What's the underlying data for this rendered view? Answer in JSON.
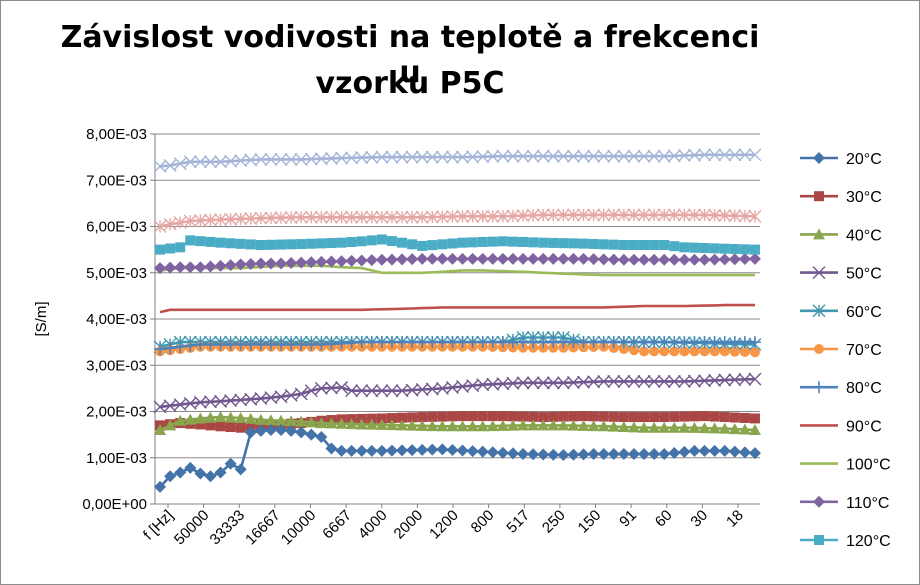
{
  "chart_data": {
    "type": "line",
    "title_line1": "Závislost vodivosti na teplotě a frekcenci u",
    "title_line2": "vzorku P5C",
    "xlabel": "",
    "ylabel": "[S/m]",
    "ylim": [
      0,
      0.008
    ],
    "y_ticks": [
      "0,00E+00",
      "1,00E-03",
      "2,00E-03",
      "3,00E-03",
      "4,00E-03",
      "5,00E-03",
      "6,00E-03",
      "7,00E-03",
      "8,00E-03"
    ],
    "x_tick_labels": [
      "f [Hz]",
      "50000",
      "33333",
      "16667",
      "10000",
      "6667",
      "4000",
      "2000",
      "1200",
      "800",
      "517",
      "250",
      "150",
      "91",
      "60",
      "30",
      "18"
    ],
    "grid": true,
    "legend_position": "right",
    "n_points": 60,
    "series": [
      {
        "name": "20°C",
        "color": "#4473a9",
        "marker": "diamond",
        "points": [
          [
            0,
            0.00037
          ],
          [
            1,
            0.0006
          ],
          [
            2,
            0.00068
          ],
          [
            3,
            0.00078
          ],
          [
            4,
            0.00066
          ],
          [
            5,
            0.0006
          ],
          [
            6,
            0.00068
          ],
          [
            7,
            0.00087
          ],
          [
            8,
            0.00075
          ],
          [
            9,
            0.00155
          ],
          [
            10,
            0.00158
          ],
          [
            11,
            0.0016
          ],
          [
            12,
            0.0016
          ],
          [
            13,
            0.00158
          ],
          [
            14,
            0.00155
          ],
          [
            15,
            0.0015
          ],
          [
            16,
            0.00145
          ],
          [
            17,
            0.0012
          ],
          [
            18,
            0.00115
          ],
          [
            22,
            0.00115
          ],
          [
            28,
            0.00118
          ],
          [
            33,
            0.00112
          ],
          [
            36,
            0.00108
          ],
          [
            40,
            0.00106
          ],
          [
            43,
            0.00108
          ],
          [
            50,
            0.00108
          ],
          [
            53,
            0.00115
          ],
          [
            56,
            0.00115
          ],
          [
            59,
            0.0011
          ]
        ]
      },
      {
        "name": "30°C",
        "color": "#aa4643",
        "marker": "square",
        "points": [
          [
            0,
            0.0017
          ],
          [
            2,
            0.00175
          ],
          [
            4,
            0.00172
          ],
          [
            6,
            0.00168
          ],
          [
            8,
            0.00165
          ],
          [
            10,
            0.0017
          ],
          [
            12,
            0.00172
          ],
          [
            14,
            0.00175
          ],
          [
            16,
            0.0018
          ],
          [
            18,
            0.00183
          ],
          [
            22,
            0.00185
          ],
          [
            26,
            0.00188
          ],
          [
            30,
            0.0019
          ],
          [
            34,
            0.0019
          ],
          [
            38,
            0.00188
          ],
          [
            42,
            0.0019
          ],
          [
            46,
            0.00188
          ],
          [
            50,
            0.00188
          ],
          [
            54,
            0.0019
          ],
          [
            59,
            0.00185
          ]
        ]
      },
      {
        "name": "40°C",
        "color": "#89a54e",
        "marker": "triangle",
        "points": [
          [
            0,
            0.0016
          ],
          [
            2,
            0.0018
          ],
          [
            4,
            0.00185
          ],
          [
            6,
            0.00188
          ],
          [
            8,
            0.00186
          ],
          [
            10,
            0.00182
          ],
          [
            12,
            0.0018
          ],
          [
            14,
            0.00178
          ],
          [
            16,
            0.00175
          ],
          [
            20,
            0.00172
          ],
          [
            24,
            0.0017
          ],
          [
            28,
            0.00168
          ],
          [
            32,
            0.00168
          ],
          [
            36,
            0.0017
          ],
          [
            40,
            0.0017
          ],
          [
            44,
            0.00168
          ],
          [
            48,
            0.00165
          ],
          [
            52,
            0.00165
          ],
          [
            56,
            0.00163
          ],
          [
            59,
            0.0016
          ]
        ]
      },
      {
        "name": "50°C",
        "color": "#71588f",
        "marker": "x",
        "points": [
          [
            0,
            0.0021
          ],
          [
            2,
            0.00215
          ],
          [
            4,
            0.0022
          ],
          [
            6,
            0.00222
          ],
          [
            8,
            0.00225
          ],
          [
            10,
            0.00228
          ],
          [
            12,
            0.00232
          ],
          [
            14,
            0.00238
          ],
          [
            15,
            0.00245
          ],
          [
            16,
            0.0025
          ],
          [
            18,
            0.00252
          ],
          [
            19,
            0.00245
          ],
          [
            20,
            0.00245
          ],
          [
            24,
            0.00245
          ],
          [
            28,
            0.0025
          ],
          [
            32,
            0.00258
          ],
          [
            36,
            0.00262
          ],
          [
            40,
            0.00262
          ],
          [
            44,
            0.00265
          ],
          [
            48,
            0.00265
          ],
          [
            52,
            0.00265
          ],
          [
            56,
            0.00268
          ],
          [
            59,
            0.0027
          ]
        ]
      },
      {
        "name": "60°C",
        "color": "#4198af",
        "marker": "asterisk",
        "points": [
          [
            0,
            0.0034
          ],
          [
            2,
            0.0035
          ],
          [
            4,
            0.0035
          ],
          [
            6,
            0.0035
          ],
          [
            8,
            0.0035
          ],
          [
            10,
            0.0035
          ],
          [
            12,
            0.0035
          ],
          [
            14,
            0.0035
          ],
          [
            18,
            0.0035
          ],
          [
            22,
            0.0035
          ],
          [
            26,
            0.0035
          ],
          [
            30,
            0.0035
          ],
          [
            34,
            0.0035
          ],
          [
            36,
            0.0036
          ],
          [
            38,
            0.0036
          ],
          [
            40,
            0.0036
          ],
          [
            42,
            0.0035
          ],
          [
            46,
            0.0035
          ],
          [
            50,
            0.0035
          ],
          [
            54,
            0.00348
          ],
          [
            59,
            0.00345
          ]
        ]
      },
      {
        "name": "70°C",
        "color": "#f79646",
        "marker": "circle",
        "points": [
          [
            0,
            0.0033
          ],
          [
            2,
            0.00335
          ],
          [
            4,
            0.0034
          ],
          [
            6,
            0.0034
          ],
          [
            8,
            0.0034
          ],
          [
            10,
            0.0034
          ],
          [
            12,
            0.0034
          ],
          [
            16,
            0.0034
          ],
          [
            20,
            0.0034
          ],
          [
            24,
            0.0034
          ],
          [
            28,
            0.0034
          ],
          [
            32,
            0.0034
          ],
          [
            36,
            0.00338
          ],
          [
            40,
            0.00338
          ],
          [
            44,
            0.0034
          ],
          [
            48,
            0.0033
          ],
          [
            52,
            0.0033
          ],
          [
            56,
            0.0033
          ],
          [
            59,
            0.00328
          ]
        ]
      },
      {
        "name": "80°C",
        "color": "#4f81bd",
        "marker": "plus",
        "points": [
          [
            0,
            0.00335
          ],
          [
            2,
            0.0034
          ],
          [
            4,
            0.00345
          ],
          [
            8,
            0.00345
          ],
          [
            12,
            0.00345
          ],
          [
            16,
            0.00345
          ],
          [
            20,
            0.0035
          ],
          [
            24,
            0.0035
          ],
          [
            28,
            0.0035
          ],
          [
            32,
            0.0035
          ],
          [
            36,
            0.0035
          ],
          [
            40,
            0.0035
          ],
          [
            44,
            0.0035
          ],
          [
            48,
            0.0035
          ],
          [
            52,
            0.0035
          ],
          [
            56,
            0.0035
          ],
          [
            59,
            0.0035
          ]
        ]
      },
      {
        "name": "90°C",
        "color": "#c0504d",
        "marker": "dash",
        "points": [
          [
            0,
            0.00415
          ],
          [
            1,
            0.0042
          ],
          [
            4,
            0.0042
          ],
          [
            8,
            0.0042
          ],
          [
            12,
            0.0042
          ],
          [
            16,
            0.0042
          ],
          [
            20,
            0.0042
          ],
          [
            24,
            0.00422
          ],
          [
            28,
            0.00425
          ],
          [
            32,
            0.00425
          ],
          [
            36,
            0.00425
          ],
          [
            40,
            0.00425
          ],
          [
            44,
            0.00425
          ],
          [
            48,
            0.00428
          ],
          [
            52,
            0.00428
          ],
          [
            56,
            0.0043
          ],
          [
            59,
            0.0043
          ]
        ]
      },
      {
        "name": "100°C",
        "color": "#9bbb59",
        "marker": "dash",
        "points": [
          [
            0,
            0.00505
          ],
          [
            2,
            0.0051
          ],
          [
            4,
            0.0051
          ],
          [
            8,
            0.0051
          ],
          [
            12,
            0.00515
          ],
          [
            16,
            0.00515
          ],
          [
            18,
            0.00512
          ],
          [
            20,
            0.0051
          ],
          [
            22,
            0.005
          ],
          [
            26,
            0.005
          ],
          [
            28,
            0.00502
          ],
          [
            30,
            0.00505
          ],
          [
            32,
            0.00505
          ],
          [
            36,
            0.00502
          ],
          [
            38,
            0.005
          ],
          [
            40,
            0.00498
          ],
          [
            44,
            0.00495
          ],
          [
            48,
            0.00495
          ],
          [
            52,
            0.00495
          ],
          [
            56,
            0.00495
          ],
          [
            59,
            0.00495
          ]
        ]
      },
      {
        "name": "110°C",
        "color": "#8064a2",
        "marker": "diamond",
        "points": [
          [
            0,
            0.0051
          ],
          [
            2,
            0.00512
          ],
          [
            4,
            0.00512
          ],
          [
            6,
            0.00515
          ],
          [
            8,
            0.00518
          ],
          [
            10,
            0.0052
          ],
          [
            12,
            0.0052
          ],
          [
            14,
            0.00522
          ],
          [
            18,
            0.00525
          ],
          [
            22,
            0.00528
          ],
          [
            26,
            0.0053
          ],
          [
            30,
            0.0053
          ],
          [
            34,
            0.0053
          ],
          [
            38,
            0.0053
          ],
          [
            42,
            0.0053
          ],
          [
            46,
            0.00528
          ],
          [
            50,
            0.00528
          ],
          [
            54,
            0.00528
          ],
          [
            59,
            0.0053
          ]
        ]
      },
      {
        "name": "120°C",
        "color": "#4bacc6",
        "marker": "square",
        "points": [
          [
            0,
            0.0055
          ],
          [
            2,
            0.00555
          ],
          [
            3,
            0.0057
          ],
          [
            6,
            0.00565
          ],
          [
            10,
            0.0056
          ],
          [
            14,
            0.00562
          ],
          [
            18,
            0.00565
          ],
          [
            20,
            0.00568
          ],
          [
            22,
            0.00572
          ],
          [
            24,
            0.00565
          ],
          [
            26,
            0.00558
          ],
          [
            30,
            0.00565
          ],
          [
            34,
            0.00568
          ],
          [
            38,
            0.00565
          ],
          [
            42,
            0.00563
          ],
          [
            46,
            0.0056
          ],
          [
            50,
            0.0056
          ],
          [
            52,
            0.00555
          ],
          [
            56,
            0.00552
          ],
          [
            59,
            0.0055
          ]
        ]
      },
      {
        "name": "",
        "color": "#a5b4d8",
        "marker": "x",
        "points": [
          [
            0,
            0.0073
          ],
          [
            1,
            0.00732
          ],
          [
            3,
            0.0074
          ],
          [
            6,
            0.0074
          ],
          [
            10,
            0.00745
          ],
          [
            14,
            0.00745
          ],
          [
            18,
            0.00748
          ],
          [
            22,
            0.0075
          ],
          [
            26,
            0.0075
          ],
          [
            30,
            0.0075
          ],
          [
            34,
            0.00752
          ],
          [
            38,
            0.00752
          ],
          [
            42,
            0.00752
          ],
          [
            46,
            0.00752
          ],
          [
            50,
            0.00752
          ],
          [
            54,
            0.00755
          ],
          [
            59,
            0.00755
          ]
        ]
      },
      {
        "name": "",
        "color": "#e5a8a5",
        "marker": "asterisk",
        "points": [
          [
            0,
            0.006
          ],
          [
            1,
            0.00605
          ],
          [
            3,
            0.00612
          ],
          [
            6,
            0.00615
          ],
          [
            10,
            0.00618
          ],
          [
            14,
            0.0062
          ],
          [
            18,
            0.0062
          ],
          [
            22,
            0.0062
          ],
          [
            26,
            0.0062
          ],
          [
            30,
            0.00622
          ],
          [
            34,
            0.00622
          ],
          [
            38,
            0.00625
          ],
          [
            42,
            0.00625
          ],
          [
            46,
            0.00625
          ],
          [
            50,
            0.00625
          ],
          [
            54,
            0.00625
          ],
          [
            59,
            0.00622
          ]
        ]
      }
    ]
  }
}
